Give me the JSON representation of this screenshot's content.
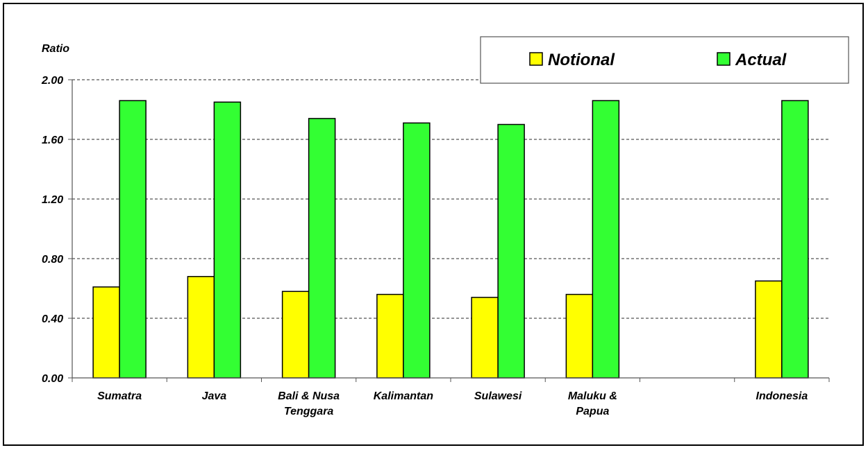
{
  "chart_data": {
    "type": "bar",
    "ylabel": "Ratio",
    "ylim": [
      0,
      2.0
    ],
    "yticks": [
      "0.00",
      "0.40",
      "0.80",
      "1.20",
      "1.60",
      "2.00"
    ],
    "grid": true,
    "legend_position": "top-right",
    "categories": [
      [
        "Sumatra"
      ],
      [
        "Java"
      ],
      [
        "Bali & Nusa",
        "Tenggara"
      ],
      [
        "Kalimantan"
      ],
      [
        "Sulawesi"
      ],
      [
        "Maluku &",
        "Papua"
      ],
      [
        ""
      ],
      [
        "Indonesia"
      ]
    ],
    "series": [
      {
        "name": "Notional",
        "color": "#ffff00",
        "values": [
          0.61,
          0.68,
          0.58,
          0.56,
          0.54,
          0.56,
          null,
          0.65
        ]
      },
      {
        "name": "Actual",
        "color": "#33ff33",
        "values": [
          1.86,
          1.85,
          1.74,
          1.71,
          1.7,
          1.86,
          null,
          1.86
        ]
      }
    ]
  }
}
